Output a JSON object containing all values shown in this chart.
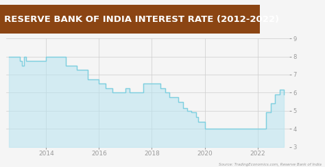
{
  "title": "RESERVE BANK OF INDIA INTEREST RATE (2012-2022)",
  "title_fontsize": 9.5,
  "title_bg": "#8B4513",
  "title_color": "white",
  "source_text": "Source: TradingEconomics.com, Reserve Bank of India",
  "bg_color": "#f5f5f5",
  "line_color": "#7ecfdf",
  "fill_color": "#b8e4f0",
  "xlim": [
    2012.5,
    2023.2
  ],
  "ylim": [
    3,
    9
  ],
  "yticks": [
    3,
    4,
    5,
    6,
    7,
    8,
    9
  ],
  "xtick_labels": [
    "2014",
    "2016",
    "2018",
    "2020",
    "2022"
  ],
  "xtick_positions": [
    2014,
    2016,
    2018,
    2020,
    2022
  ],
  "data_x": [
    2012.58,
    2013.0,
    2013.08,
    2013.17,
    2013.25,
    2014.0,
    2014.75,
    2015.17,
    2015.58,
    2016.0,
    2016.25,
    2016.5,
    2017.0,
    2017.17,
    2017.67,
    2018.33,
    2018.5,
    2018.67,
    2019.0,
    2019.17,
    2019.33,
    2019.5,
    2019.67,
    2019.75,
    2020.0,
    2020.17,
    2020.25,
    2021.0,
    2022.17,
    2022.33,
    2022.5,
    2022.67,
    2022.83,
    2023.0
  ],
  "data_y": [
    8.0,
    7.75,
    7.5,
    8.0,
    7.75,
    8.0,
    7.5,
    7.25,
    6.75,
    6.5,
    6.25,
    6.0,
    6.25,
    6.0,
    6.5,
    6.25,
    6.0,
    5.75,
    5.5,
    5.15,
    5.0,
    4.9,
    4.65,
    4.4,
    4.0,
    4.0,
    4.0,
    4.0,
    4.0,
    4.9,
    5.4,
    5.9,
    6.15,
    5.9
  ]
}
